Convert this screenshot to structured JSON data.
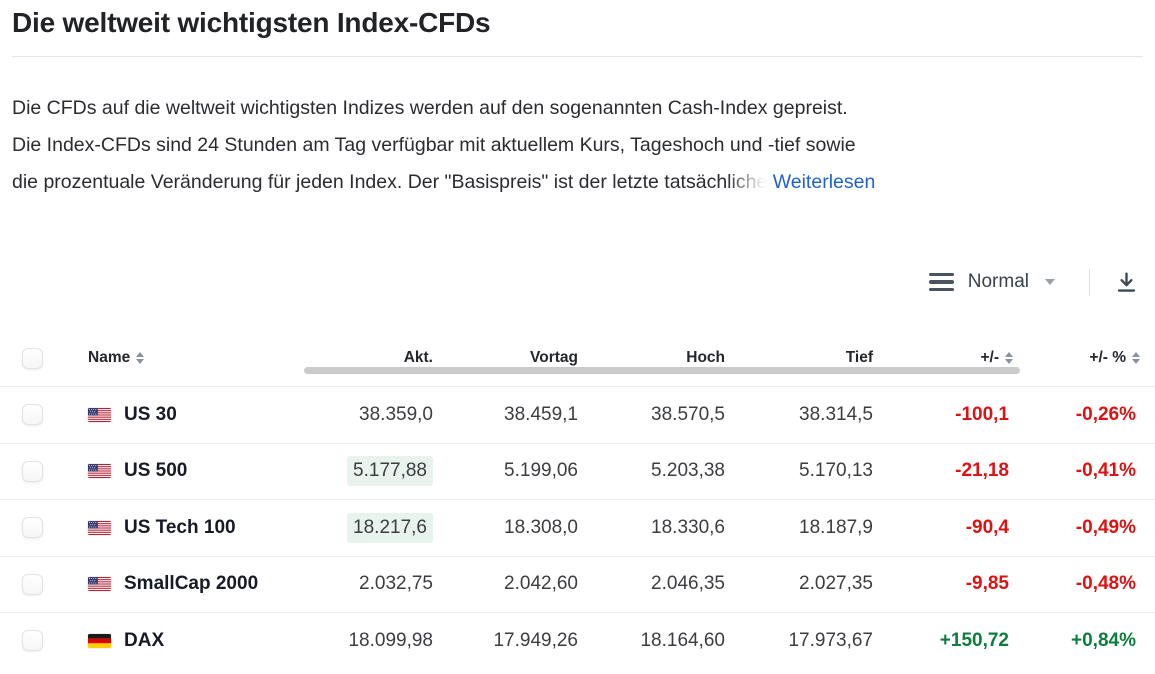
{
  "page": {
    "title": "Die weltweit wichtigsten Index-CFDs"
  },
  "description": {
    "line1": "Die CFDs auf die weltweit wichtigsten Indizes werden auf den sogenannten Cash-Index gepreist.",
    "line2": "Die Index-CFDs sind 24 Stunden am Tag verfügbar mit aktuellem Kurs, Tageshoch und -tief sowie",
    "line3": "die prozentuale Veränderung für jeden Index. Der \"Basispreis\" ist der letzte tatsäch",
    "line3_fade": "liche",
    "read_more_label": "Weiterlesen"
  },
  "toolbar": {
    "view_mode_label": "Normal",
    "icons": {
      "view_density": "density-icon",
      "dropdown": "chevron-down-icon",
      "export": "download-icon"
    }
  },
  "table": {
    "headers": {
      "name": "Name",
      "akt": "Akt.",
      "vortag": "Vortag",
      "hoch": "Hoch",
      "tief": "Tief",
      "chg": "+/-",
      "chg_pct": "+/- %"
    },
    "rows": [
      {
        "flag": "us",
        "name": "US 30",
        "akt": "38.359,0",
        "akt_highlight": false,
        "vortag": "38.459,1",
        "hoch": "38.570,5",
        "tief": "38.314,5",
        "chg": "-100,1",
        "chg_pct": "-0,26%",
        "direction": "down"
      },
      {
        "flag": "us",
        "name": "US 500",
        "akt": "5.177,88",
        "akt_highlight": true,
        "vortag": "5.199,06",
        "hoch": "5.203,38",
        "tief": "5.170,13",
        "chg": "-21,18",
        "chg_pct": "-0,41%",
        "direction": "down"
      },
      {
        "flag": "us",
        "name": "US Tech 100",
        "akt": "18.217,6",
        "akt_highlight": true,
        "vortag": "18.308,0",
        "hoch": "18.330,6",
        "tief": "18.187,9",
        "chg": "-90,4",
        "chg_pct": "-0,49%",
        "direction": "down"
      },
      {
        "flag": "us",
        "name": "SmallCap 2000",
        "akt": "2.032,75",
        "akt_highlight": false,
        "vortag": "2.042,60",
        "hoch": "2.046,35",
        "tief": "2.027,35",
        "chg": "-9,85",
        "chg_pct": "-0,48%",
        "direction": "down"
      },
      {
        "flag": "de",
        "name": "DAX",
        "akt": "18.099,98",
        "akt_highlight": false,
        "vortag": "17.949,26",
        "hoch": "18.164,60",
        "tief": "17.973,67",
        "chg": "+150,72",
        "chg_pct": "+0,84%",
        "direction": "up"
      }
    ]
  },
  "colors": {
    "negative": "#e01111",
    "positive": "#0c7d3c",
    "link": "#1f62cc",
    "highlight": "#e8f3ed"
  }
}
